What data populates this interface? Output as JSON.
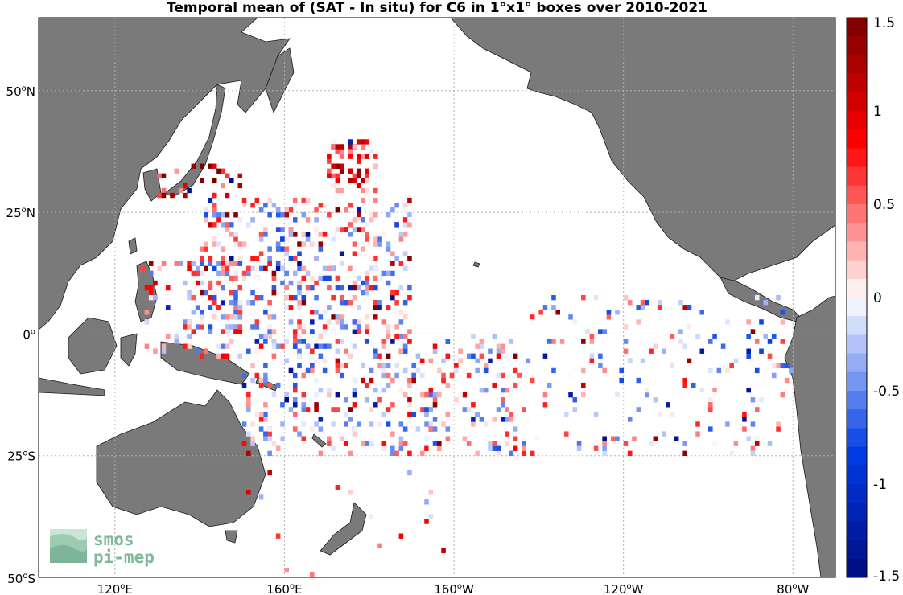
{
  "title": "Temporal mean of (SAT - In situ) for C6 in 1°x1° boxes over 2010-2021",
  "map": {
    "projection": "equirectangular",
    "lon_range": [
      102,
      290
    ],
    "lat_range": [
      -50,
      65
    ],
    "land_color": "#7a7a7a",
    "ocean_color": "#ffffff",
    "gridlines": true,
    "x_ticks": [
      {
        "lon": 120,
        "deg": "120",
        "hemi": "E"
      },
      {
        "lon": 160,
        "deg": "160",
        "hemi": "E"
      },
      {
        "lon": 200,
        "deg": "160",
        "hemi": "W"
      },
      {
        "lon": 240,
        "deg": "120",
        "hemi": "W"
      },
      {
        "lon": 280,
        "deg": "80",
        "hemi": "W"
      }
    ],
    "y_ticks": [
      {
        "lat": 50,
        "deg": "50",
        "hemi": "N"
      },
      {
        "lat": 25,
        "deg": "25",
        "hemi": "N"
      },
      {
        "lat": 0,
        "deg": "0",
        "hemi": ""
      },
      {
        "lat": -25,
        "deg": "25",
        "hemi": "S"
      },
      {
        "lat": -50,
        "deg": "50",
        "hemi": "S"
      }
    ]
  },
  "colorbar": {
    "min": -1.5,
    "max": 1.5,
    "tick_values": [
      1.5,
      1,
      0.5,
      0,
      -0.5,
      -1,
      -1.5
    ],
    "tick_labels": [
      "1.5",
      "1",
      "0.5",
      "0",
      "-0.5",
      "-1",
      "-1.5"
    ],
    "color_low": "#000a80",
    "color_mid": "#ffffff",
    "color_high": "#7a0000"
  },
  "logo": {
    "line1": "smos",
    "line2": "pi-mep",
    "color": "#7fb99a"
  },
  "cell_regions": [
    {
      "lon": [
        170,
        182
      ],
      "lat": [
        29,
        40
      ],
      "count": 70,
      "bias": 0.7
    },
    {
      "lon": [
        130,
        150
      ],
      "lat": [
        28,
        35
      ],
      "count": 28,
      "bias": 1.1
    },
    {
      "lon": [
        140,
        190
      ],
      "lat": [
        0,
        28
      ],
      "count": 420,
      "bias": 0.0
    },
    {
      "lon": [
        126,
        150
      ],
      "lat": [
        -5,
        15
      ],
      "count": 110,
      "bias": 0.1
    },
    {
      "lon": [
        150,
        215
      ],
      "lat": [
        -25,
        0
      ],
      "count": 380,
      "bias": 0.05
    },
    {
      "lon": [
        215,
        280
      ],
      "lat": [
        -25,
        8
      ],
      "count": 190,
      "bias": 0.0
    },
    {
      "lon": [
        150,
        200
      ],
      "lat": [
        -50,
        -25
      ],
      "count": 18,
      "bias": 0.4
    }
  ]
}
